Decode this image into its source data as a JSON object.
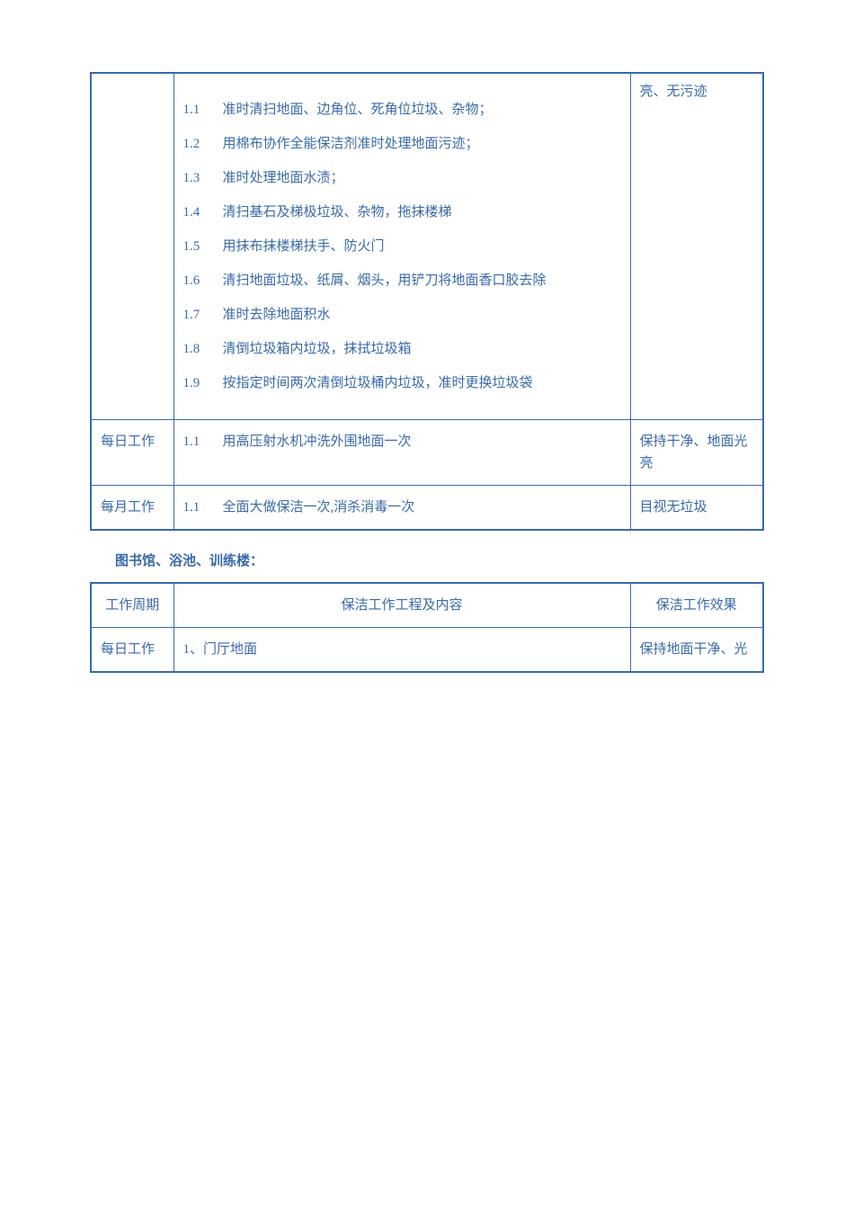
{
  "colors": {
    "text": "#3a6aa8",
    "border": "#3a6aa8",
    "background": "#ffffff"
  },
  "table1": {
    "row1": {
      "period": "",
      "items": [
        {
          "n": "1.1",
          "t": "准时清扫地面、边角位、死角位垃圾、杂物；"
        },
        {
          "n": "1.2",
          "t": "用棉布协作全能保洁剂准时处理地面污迹；"
        },
        {
          "n": "1.3",
          "t": "准时处理地面水渍；"
        },
        {
          "n": "1.4",
          "t": "清扫基石及梯极垃圾、杂物，拖抹楼梯"
        },
        {
          "n": "1.5",
          "t": "用抹布抹楼梯扶手、防火门"
        },
        {
          "n": "1.6",
          "t": "清扫地面垃圾、纸屑、烟头，用铲刀将地面香口胶去除"
        },
        {
          "n": "1.7",
          "t": "准时去除地面积水"
        },
        {
          "n": "1.8",
          "t": "清倒垃圾箱内垃圾，抹拭垃圾箱"
        },
        {
          "n": "1.9",
          "t": "按指定时间两次清倒垃圾桶内垃圾，准时更换垃圾袋"
        }
      ],
      "result": "亮、无污迹"
    },
    "row2": {
      "period": "每日工作",
      "item_n": "1.1",
      "item_t": "用高压射水机冲洗外围地面一次",
      "result": "保持干净、地面光亮"
    },
    "row3": {
      "period": "每月工作",
      "item_n": "1.1",
      "item_t": "全面大做保洁一次,消杀消毒一次",
      "result": "目视无垃圾"
    }
  },
  "section_title": "图书馆、浴池、训练楼：",
  "table2": {
    "header": {
      "c1": "工作周期",
      "c2": "保洁工作工程及内容",
      "c3": "保洁工作效果"
    },
    "row1": {
      "period": "每日工作",
      "content": "1、门厅地面",
      "result": "保持地面干净、光"
    }
  }
}
